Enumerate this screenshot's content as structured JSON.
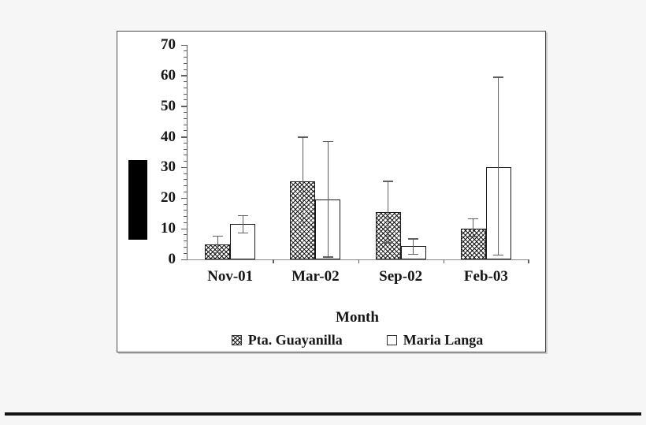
{
  "page": {
    "background_color": "#f5f6f5",
    "bottom_rule_color": "#141414"
  },
  "chart": {
    "frame_color": "#4a4a4a",
    "axis_color": "#5f5f5f",
    "text_color": "#161616",
    "ylabel_redacted_by_black_box": true,
    "redaction_color": "#000000"
  },
  "chart_data": {
    "type": "bar",
    "title": "",
    "xlabel": "Month",
    "ylabel": "",
    "ylim": [
      0,
      70
    ],
    "ytick_step": 10,
    "yminor_step": 2,
    "grid": false,
    "legend_position": "bottom-inside",
    "categories": [
      "Nov-01",
      "Mar-02",
      "Sep-02",
      "Feb-03"
    ],
    "series": [
      {
        "name": "Pta. Guayanilla",
        "fill": "crosshatch",
        "values": [
          5.0,
          25.5,
          15.5,
          10.0
        ],
        "error_low": [
          2.3,
          11.0,
          5.5,
          7.5
        ],
        "error_high": [
          7.7,
          40.0,
          25.5,
          13.3
        ]
      },
      {
        "name": "Maria Langa",
        "fill": "white",
        "values": [
          11.5,
          19.5,
          4.3,
          30.0
        ],
        "error_low": [
          8.7,
          0.8,
          1.8,
          1.5
        ],
        "error_high": [
          14.3,
          38.5,
          6.8,
          59.5
        ]
      }
    ]
  }
}
